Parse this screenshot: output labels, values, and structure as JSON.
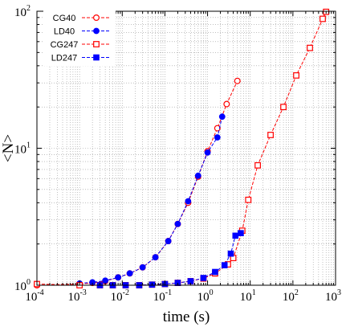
{
  "chart_data": {
    "type": "line",
    "title": "",
    "xlabel": "time (s)",
    "ylabel": "<N>",
    "xscale": "log",
    "yscale": "log",
    "xlim": [
      0.0001,
      1000
    ],
    "ylim": [
      1,
      100
    ],
    "grid": true,
    "grid_style": "dotted",
    "legend_position": "top-left",
    "x_tick_labels": [
      {
        "base": "10",
        "exp": "-4"
      },
      {
        "base": "10",
        "exp": "-3"
      },
      {
        "base": "10",
        "exp": "-2"
      },
      {
        "base": "10",
        "exp": "-1"
      },
      {
        "base": "10",
        "exp": "0"
      },
      {
        "base": "10",
        "exp": "1"
      },
      {
        "base": "10",
        "exp": "2"
      },
      {
        "base": "10",
        "exp": "3"
      }
    ],
    "y_tick_labels": [
      {
        "base": "10",
        "exp": "0"
      },
      {
        "base": "10",
        "exp": "1"
      },
      {
        "base": "10",
        "exp": "2"
      }
    ],
    "series": [
      {
        "name": "CG40",
        "color": "#ff0000",
        "marker": "open-circle",
        "points": [
          [
            0.0001,
            1.0
          ],
          [
            0.001,
            1.02
          ],
          [
            0.002,
            1.04
          ],
          [
            0.004,
            1.07
          ],
          [
            0.008,
            1.14
          ],
          [
            0.015,
            1.22
          ],
          [
            0.03,
            1.35
          ],
          [
            0.06,
            1.6
          ],
          [
            0.12,
            2.1
          ],
          [
            0.2,
            2.8
          ],
          [
            0.35,
            4.0
          ],
          [
            0.6,
            6.2
          ],
          [
            1.0,
            9.5
          ],
          [
            1.7,
            14.0
          ],
          [
            2.8,
            21.0
          ],
          [
            5.0,
            31.0
          ]
        ]
      },
      {
        "name": "LD40",
        "color": "#0000ff",
        "marker": "filled-circle",
        "points": [
          [
            0.001,
            1.03
          ],
          [
            0.002,
            1.05
          ],
          [
            0.004,
            1.08
          ],
          [
            0.008,
            1.14
          ],
          [
            0.015,
            1.22
          ],
          [
            0.03,
            1.35
          ],
          [
            0.06,
            1.6
          ],
          [
            0.12,
            2.1
          ],
          [
            0.2,
            2.8
          ],
          [
            0.35,
            4.1
          ],
          [
            0.6,
            6.3
          ],
          [
            1.0,
            9.3
          ],
          [
            1.7,
            12.0
          ],
          [
            2.2,
            17.0
          ]
        ]
      },
      {
        "name": "CG247",
        "color": "#ff0000",
        "marker": "open-square",
        "points": [
          [
            0.0001,
            1.02
          ],
          [
            0.001,
            1.0
          ],
          [
            0.003,
            1.0
          ],
          [
            0.006,
            1.0
          ],
          [
            0.012,
            1.0
          ],
          [
            0.025,
            1.0
          ],
          [
            0.05,
            1.01
          ],
          [
            0.1,
            1.02
          ],
          [
            0.2,
            1.04
          ],
          [
            0.4,
            1.07
          ],
          [
            0.8,
            1.12
          ],
          [
            1.5,
            1.22
          ],
          [
            3.0,
            1.42
          ],
          [
            4.0,
            1.58
          ],
          [
            6.5,
            2.5
          ],
          [
            9.0,
            4.2
          ],
          [
            15.0,
            7.5
          ],
          [
            30.0,
            12.5
          ],
          [
            60.0,
            20.0
          ],
          [
            120.0,
            34.0
          ],
          [
            250.0,
            54.0
          ],
          [
            500.0,
            88.0
          ],
          [
            600.0,
            99.0
          ]
        ]
      },
      {
        "name": "LD247",
        "color": "#0000ff",
        "marker": "filled-square",
        "points": [
          [
            0.003,
            1.0
          ],
          [
            0.006,
            1.0
          ],
          [
            0.012,
            1.0
          ],
          [
            0.025,
            1.0
          ],
          [
            0.05,
            1.01
          ],
          [
            0.1,
            1.02
          ],
          [
            0.2,
            1.04
          ],
          [
            0.4,
            1.07
          ],
          [
            0.8,
            1.13
          ],
          [
            1.5,
            1.25
          ],
          [
            2.5,
            1.4
          ],
          [
            3.5,
            1.7
          ],
          [
            4.5,
            2.3
          ],
          [
            6.0,
            2.4
          ]
        ]
      }
    ]
  }
}
